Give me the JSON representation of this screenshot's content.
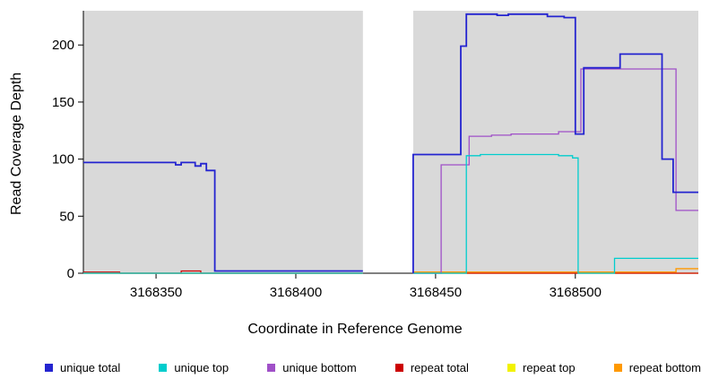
{
  "chart_data": {
    "type": "line",
    "step": true,
    "title": "",
    "xlabel": "Coordinate in Reference Genome",
    "ylabel": "Read Coverage Depth",
    "xlim": [
      3168324,
      3168544
    ],
    "ylim": [
      0,
      230
    ],
    "xticks": [
      3168350,
      3168400,
      3168450,
      3168500
    ],
    "yticks": [
      0,
      50,
      100,
      150,
      200
    ],
    "gap_region": [
      3168424,
      3168442
    ],
    "plot_bg": "#d9d9d9",
    "gap_fill": "#ffffff",
    "axis_color": "#000000",
    "series": [
      {
        "name": "repeat top",
        "color": "#e8e800",
        "width": 1.2,
        "segments": [
          {
            "points": [
              [
                3168324,
                0
              ]
            ],
            "end": 3168424
          },
          {
            "points": [
              [
                3168442,
                0
              ]
            ],
            "end": 3168544
          }
        ]
      },
      {
        "name": "repeat total",
        "color": "#cc0000",
        "width": 1.2,
        "segments": [
          {
            "points": [
              [
                3168324,
                1
              ],
              [
                3168337,
                0
              ],
              [
                3168359,
                2
              ],
              [
                3168366,
                0
              ]
            ],
            "end": 3168424
          },
          {
            "points": [
              [
                3168442,
                0
              ]
            ],
            "end": 3168544
          }
        ]
      },
      {
        "name": "repeat bottom",
        "color": "#ff9900",
        "width": 1.4,
        "segments": [
          {
            "points": [
              [
                3168324,
                0
              ]
            ],
            "end": 3168424
          },
          {
            "points": [
              [
                3168442,
                1
              ],
              [
                3168536,
                4
              ]
            ],
            "end": 3168544
          }
        ]
      },
      {
        "name": "unique bottom",
        "color": "#a050c8",
        "width": 1.3,
        "segments": [
          {
            "points": [
              [
                3168324,
                0
              ]
            ],
            "end": 3168424
          },
          {
            "points": [
              [
                3168442,
                0
              ],
              [
                3168452,
                95
              ],
              [
                3168462,
                120
              ],
              [
                3168470,
                121
              ],
              [
                3168477,
                122
              ],
              [
                3168494,
                124
              ],
              [
                3168502,
                179
              ],
              [
                3168536,
                55
              ]
            ],
            "end": 3168544
          }
        ]
      },
      {
        "name": "unique top",
        "color": "#00cdcd",
        "width": 1.3,
        "segments": [
          {
            "points": [
              [
                3168324,
                0
              ]
            ],
            "end": 3168424
          },
          {
            "points": [
              [
                3168442,
                0
              ],
              [
                3168461,
                103
              ],
              [
                3168466,
                104
              ],
              [
                3168494,
                103
              ],
              [
                3168499,
                101
              ],
              [
                3168501,
                0
              ],
              [
                3168514,
                13
              ]
            ],
            "end": 3168544
          }
        ]
      },
      {
        "name": "unique total",
        "color": "#2424d0",
        "width": 1.8,
        "segments": [
          {
            "points": [
              [
                3168324,
                97
              ],
              [
                3168357,
                95
              ],
              [
                3168359,
                97
              ],
              [
                3168364,
                94
              ],
              [
                3168366,
                96
              ],
              [
                3168368,
                90
              ],
              [
                3168371,
                2
              ]
            ],
            "end": 3168424
          },
          {
            "points": [
              [
                3168442,
                0
              ],
              [
                3168442,
                104
              ],
              [
                3168459,
                199
              ],
              [
                3168461,
                227
              ],
              [
                3168472,
                226
              ],
              [
                3168476,
                227
              ],
              [
                3168490,
                225
              ],
              [
                3168496,
                224
              ],
              [
                3168500,
                122
              ],
              [
                3168503,
                180
              ],
              [
                3168516,
                192
              ],
              [
                3168531,
                100
              ],
              [
                3168535,
                71
              ]
            ],
            "end": 3168544
          }
        ]
      }
    ],
    "legend": [
      {
        "label": "unique total",
        "color": "#2424d0"
      },
      {
        "label": "unique top",
        "color": "#00cdcd"
      },
      {
        "label": "unique bottom",
        "color": "#a050c8"
      },
      {
        "label": "repeat total",
        "color": "#cc0000"
      },
      {
        "label": "repeat top",
        "color": "#f2f200"
      },
      {
        "label": "repeat bottom",
        "color": "#ff9900"
      }
    ]
  }
}
